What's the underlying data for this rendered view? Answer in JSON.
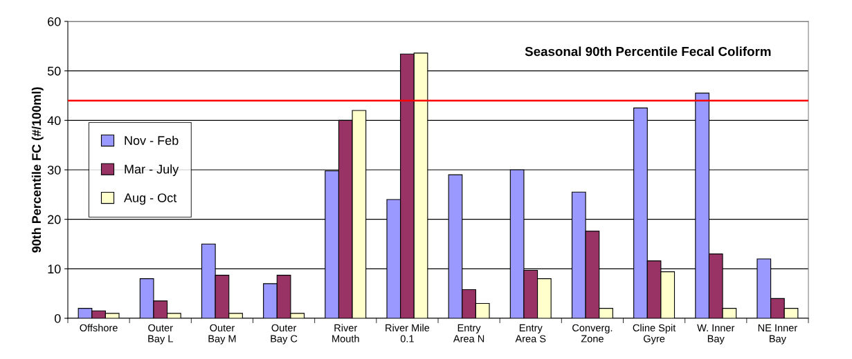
{
  "chart_data": {
    "type": "bar",
    "title": "Seasonal 90th Percentile Fecal Coliform",
    "ylabel": "90th Percentile FC (#/100ml)",
    "categories": [
      "Offshore",
      "Outer\nBay L",
      "Outer\nBay M",
      "Outer\nBay C",
      "River\nMouth",
      "River Mile\n0.1",
      "Entry\nArea N",
      "Entry\nArea S",
      "Converg.\nZone",
      "Cline Spit\nGyre",
      "W. Inner\nBay",
      "NE Inner\nBay"
    ],
    "series": [
      {
        "name": "Nov - Feb",
        "color": "#9999ff",
        "values": [
          2,
          8,
          15,
          7,
          29.8,
          24,
          29,
          30,
          25.5,
          42.5,
          45.5,
          12
        ]
      },
      {
        "name": "Mar - July",
        "color": "#993366",
        "values": [
          1.5,
          3.5,
          8.7,
          8.7,
          40,
          53.4,
          5.8,
          9.7,
          17.6,
          11.6,
          13,
          4
        ]
      },
      {
        "name": "Aug - Oct",
        "color": "#ffffcc",
        "values": [
          1,
          1,
          1,
          1,
          42,
          53.6,
          3,
          8,
          2,
          9.4,
          2,
          2
        ]
      }
    ],
    "ylim": [
      0,
      60
    ],
    "yticks": [
      0,
      10,
      20,
      30,
      40,
      50,
      60
    ],
    "grid": "y",
    "legend": "center left",
    "ref_lines": [
      {
        "axis": "y",
        "value": 44,
        "color": "#ff0000"
      }
    ]
  }
}
